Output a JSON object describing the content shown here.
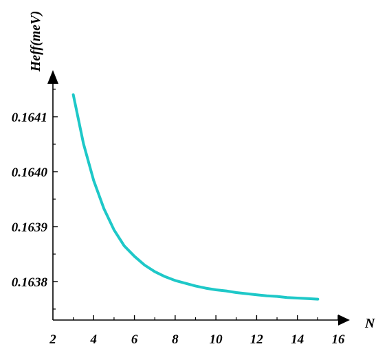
{
  "chart_data": {
    "type": "line",
    "title": "",
    "xlabel": "N",
    "ylabel": "Heff(meV)",
    "xlim": [
      2,
      16
    ],
    "ylim": [
      0.16373,
      0.16416
    ],
    "grid": false,
    "legend": "none",
    "x_ticks": [
      2,
      4,
      6,
      8,
      10,
      12,
      14,
      16
    ],
    "x_tick_labels": [
      "2",
      "4",
      "6",
      "8",
      "10",
      "12",
      "14",
      "16"
    ],
    "y_ticks": [
      0.1638,
      0.1639,
      0.164,
      0.1641
    ],
    "y_tick_labels": [
      "0.1638",
      "0.1639",
      "0.1640",
      "0.1641"
    ],
    "series": [
      {
        "color": "#1ec8c8",
        "x": [
          3,
          3.5,
          4,
          4.5,
          5,
          5.5,
          6,
          6.5,
          7,
          7.5,
          8,
          8.5,
          9,
          9.5,
          10,
          10.5,
          11,
          11.5,
          12,
          12.5,
          13,
          13.5,
          14,
          14.5,
          15
        ],
        "y": [
          0.16414,
          0.164051,
          0.163984,
          0.163933,
          0.163894,
          0.163865,
          0.163846,
          0.16383,
          0.163818,
          0.163809,
          0.163802,
          0.163797,
          0.163792,
          0.163788,
          0.163785,
          0.163783,
          0.16378,
          0.163778,
          0.163776,
          0.163774,
          0.163773,
          0.163771,
          0.16377,
          0.163769,
          0.163768
        ]
      }
    ]
  }
}
